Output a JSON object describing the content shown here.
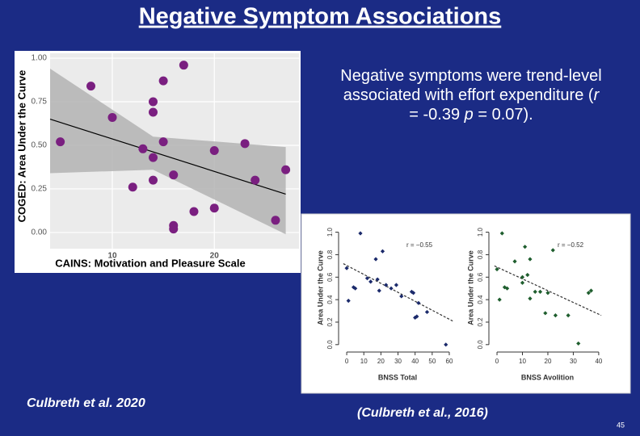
{
  "slide": {
    "title": "Negative Symptom Associations",
    "body": [
      "Negative symptoms were trend-level associated with effort expenditure (",
      "r",
      " = -0.39 ",
      "p",
      " = 0.07)."
    ],
    "citation_left": "Culbreth et al. 2020",
    "citation_right": "(Culbreth et al., 2016)",
    "page_number": "45"
  },
  "chart_data": [
    {
      "type": "scatter",
      "x_label": "CAINS: Motivation and Pleasure Scale",
      "y_label": "COGED: Area Under the Curve",
      "color": "#7a1f80",
      "grid": true,
      "background": "#ebebeb",
      "x": [
        4.9,
        7.9,
        10,
        12,
        13,
        14,
        14,
        14,
        14,
        15,
        15,
        16,
        16,
        16,
        17,
        18,
        20,
        20,
        23,
        24,
        26,
        27
      ],
      "values": [
        0.52,
        0.84,
        0.66,
        0.26,
        0.48,
        0.75,
        0.69,
        0.43,
        0.3,
        0.87,
        0.52,
        0.33,
        0.04,
        0.02,
        0.96,
        0.12,
        0.14,
        0.47,
        0.51,
        0.3,
        0.07,
        0.36
      ],
      "fit": {
        "x": [
          3.9,
          27
        ],
        "y": [
          0.65,
          0.22
        ],
        "color": "#000000",
        "dashed": false
      },
      "band": {
        "x": [
          3.9,
          14,
          27
        ],
        "upper": [
          0.94,
          0.55,
          0.49
        ],
        "lower": [
          0.34,
          0.36,
          -0.01
        ],
        "color": "#b3b3b3"
      },
      "xlim": [
        3.9,
        28.3
      ],
      "ylim": [
        -0.093,
        1.028
      ],
      "xticks": [
        10,
        20
      ],
      "yticks": [
        {
          "value": 0,
          "label": "0.00"
        },
        {
          "value": 0.25,
          "label": "0.25"
        },
        {
          "value": 0.5,
          "label": "0.50"
        },
        {
          "value": 0.75,
          "label": "0.75"
        },
        {
          "value": 1,
          "label": "1.00"
        }
      ]
    },
    {
      "type": "scatter",
      "x_label": "BNSS Total",
      "y_label": "Area Under the Curve",
      "annotation": "r = −0.55",
      "color": "#1b2a6b",
      "grid": false,
      "background": "#ffffff",
      "axis_lines": true,
      "x": [
        0,
        1,
        4,
        5,
        8,
        12,
        14,
        17,
        18,
        19,
        21,
        23,
        26,
        29,
        32,
        38,
        39,
        40,
        41,
        42,
        47,
        58
      ],
      "values": [
        0.68,
        0.39,
        0.51,
        0.5,
        0.99,
        0.59,
        0.56,
        0.76,
        0.58,
        0.48,
        0.83,
        0.53,
        0.5,
        0.53,
        0.43,
        0.47,
        0.46,
        0.24,
        0.25,
        0.37,
        0.29,
        0.0
      ],
      "fit": {
        "x": [
          -2,
          62
        ],
        "y": [
          0.72,
          0.21
        ],
        "color": "#333333",
        "dashed": true
      },
      "xlim": [
        -2.4,
        61.9
      ],
      "ylim": [
        -0.03,
        1.04
      ],
      "xticks": [
        0,
        10,
        20,
        30,
        40,
        50,
        60
      ],
      "yticks": [
        {
          "value": 0,
          "label": "0.0"
        },
        {
          "value": 0.2,
          "label": "0.2"
        },
        {
          "value": 0.4,
          "label": "0.4"
        },
        {
          "value": 0.6,
          "label": "0.6"
        },
        {
          "value": 0.8,
          "label": "0.8"
        },
        {
          "value": 1,
          "label": "1.0"
        }
      ]
    },
    {
      "type": "scatter",
      "x_label": "BNSS Avolition",
      "y_label": "Area Under the Curve",
      "annotation": "r = −0.52",
      "color": "#1f5e2e",
      "grid": false,
      "background": "#ffffff",
      "axis_lines": true,
      "x": [
        0,
        1,
        2,
        3,
        4,
        7,
        10,
        10,
        11,
        12,
        13,
        13,
        15,
        17,
        19,
        20,
        22,
        23,
        28,
        32,
        36,
        37
      ],
      "values": [
        0.67,
        0.4,
        0.99,
        0.51,
        0.5,
        0.74,
        0.55,
        0.6,
        0.87,
        0.62,
        0.41,
        0.76,
        0.47,
        0.47,
        0.28,
        0.46,
        0.84,
        0.26,
        0.26,
        0.01,
        0.46,
        0.48
      ],
      "fit": {
        "x": [
          -1,
          41
        ],
        "y": [
          0.7,
          0.26
        ],
        "color": "#333333",
        "dashed": true
      },
      "xlim": [
        -1.6,
        41.3
      ],
      "ylim": [
        -0.03,
        1.04
      ],
      "xticks": [
        0,
        10,
        20,
        30,
        40
      ],
      "yticks": [
        {
          "value": 0,
          "label": "0.0"
        },
        {
          "value": 0.2,
          "label": "0.2"
        },
        {
          "value": 0.4,
          "label": "0.4"
        },
        {
          "value": 0.6,
          "label": "0.6"
        },
        {
          "value": 0.8,
          "label": "0.8"
        },
        {
          "value": 1,
          "label": "1.0"
        }
      ]
    }
  ]
}
